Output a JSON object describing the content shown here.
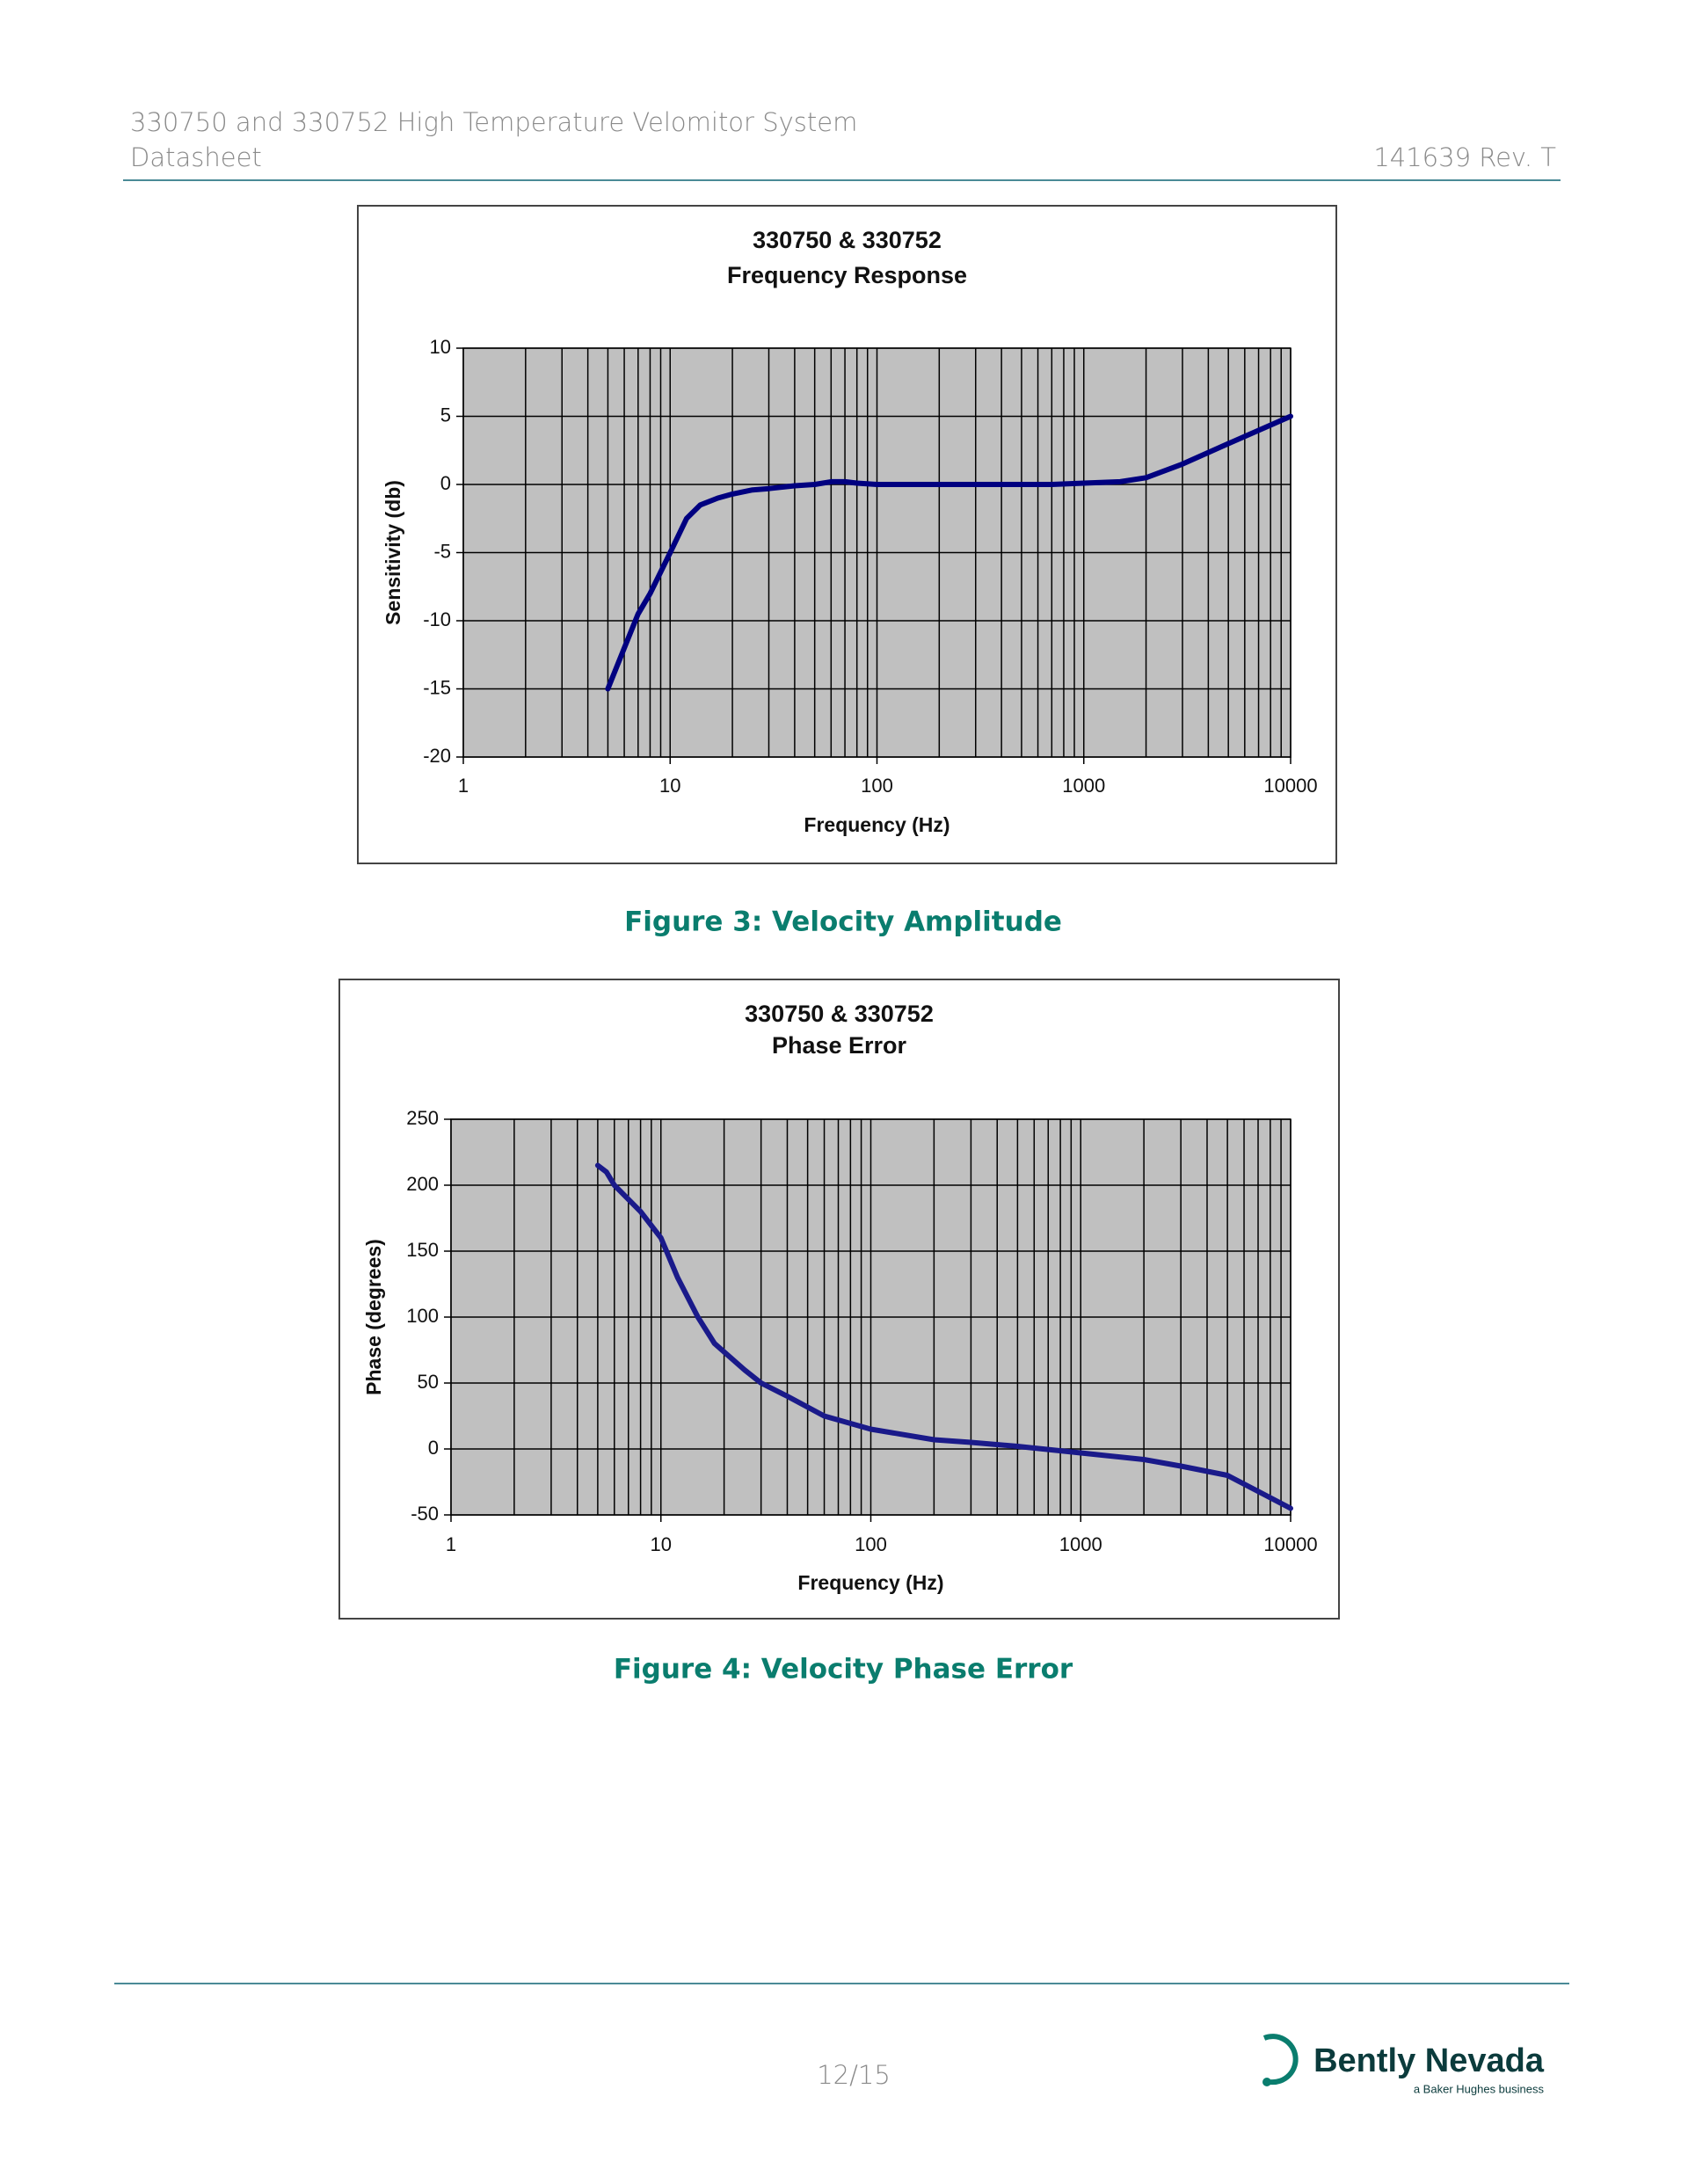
{
  "header": {
    "title": "330750 and 330752 High Temperature Velomitor System",
    "subtitle": "Datasheet",
    "doc_number": "141639 Rev. T"
  },
  "chart_data": [
    {
      "type": "line",
      "title": "330750 & 330752",
      "subtitle": "Frequency Response",
      "x_label": "Frequency (Hz)",
      "y_label": "Sensitivity (db)",
      "log_x": true,
      "grid": true,
      "minor_grid": true,
      "plot_background": "#c0c0c0",
      "xlim": [
        1,
        10000
      ],
      "xticks": [
        1,
        10,
        100,
        1000,
        10000
      ],
      "ylim": [
        -20,
        10
      ],
      "yticks": [
        -20,
        -15,
        -10,
        -5,
        0,
        5,
        10
      ],
      "x": [
        5,
        6,
        7,
        8,
        10,
        12,
        14,
        17,
        20,
        25,
        30,
        40,
        50,
        60,
        70,
        80,
        100,
        200,
        500,
        700,
        1000,
        1500,
        2000,
        3000,
        5000,
        10000
      ],
      "series": [
        {
          "color": "#000080",
          "values": [
            -15,
            -12,
            -9.5,
            -8,
            -5,
            -2.5,
            -1.5,
            -1,
            -0.7,
            -0.4,
            -0.3,
            -0.1,
            0,
            0.2,
            0.2,
            0.1,
            0,
            0,
            0,
            0,
            0.1,
            0.2,
            0.5,
            1.5,
            3,
            5
          ]
        }
      ]
    },
    {
      "type": "line",
      "title": "330750 & 330752",
      "subtitle": "Phase Error",
      "x_label": "Frequency (Hz)",
      "y_label": "Phase (degrees)",
      "log_x": true,
      "grid": true,
      "minor_grid": true,
      "plot_background": "#c0c0c0",
      "xlim": [
        1,
        10000
      ],
      "xticks": [
        1,
        10,
        100,
        1000,
        10000
      ],
      "ylim": [
        -50,
        250
      ],
      "yticks": [
        -50,
        0,
        50,
        100,
        150,
        200,
        250
      ],
      "x": [
        5,
        5.5,
        6,
        8,
        10,
        12,
        15,
        18,
        25,
        30,
        40,
        60,
        100,
        200,
        300,
        500,
        1000,
        2000,
        3000,
        5000,
        10000
      ],
      "series": [
        {
          "color": "#1a1a8a",
          "values": [
            215,
            210,
            200,
            180,
            160,
            130,
            100,
            80,
            60,
            50,
            40,
            25,
            15,
            7,
            5,
            2,
            -3,
            -8,
            -13,
            -20,
            -45
          ]
        }
      ]
    }
  ],
  "captions": [
    "Figure 3:  Velocity Amplitude",
    "Figure 4:  Velocity Phase Error"
  ],
  "footer": {
    "page": "12/15",
    "logo_name": "Bently Nevada",
    "logo_tagline": "a Baker Hughes business"
  }
}
